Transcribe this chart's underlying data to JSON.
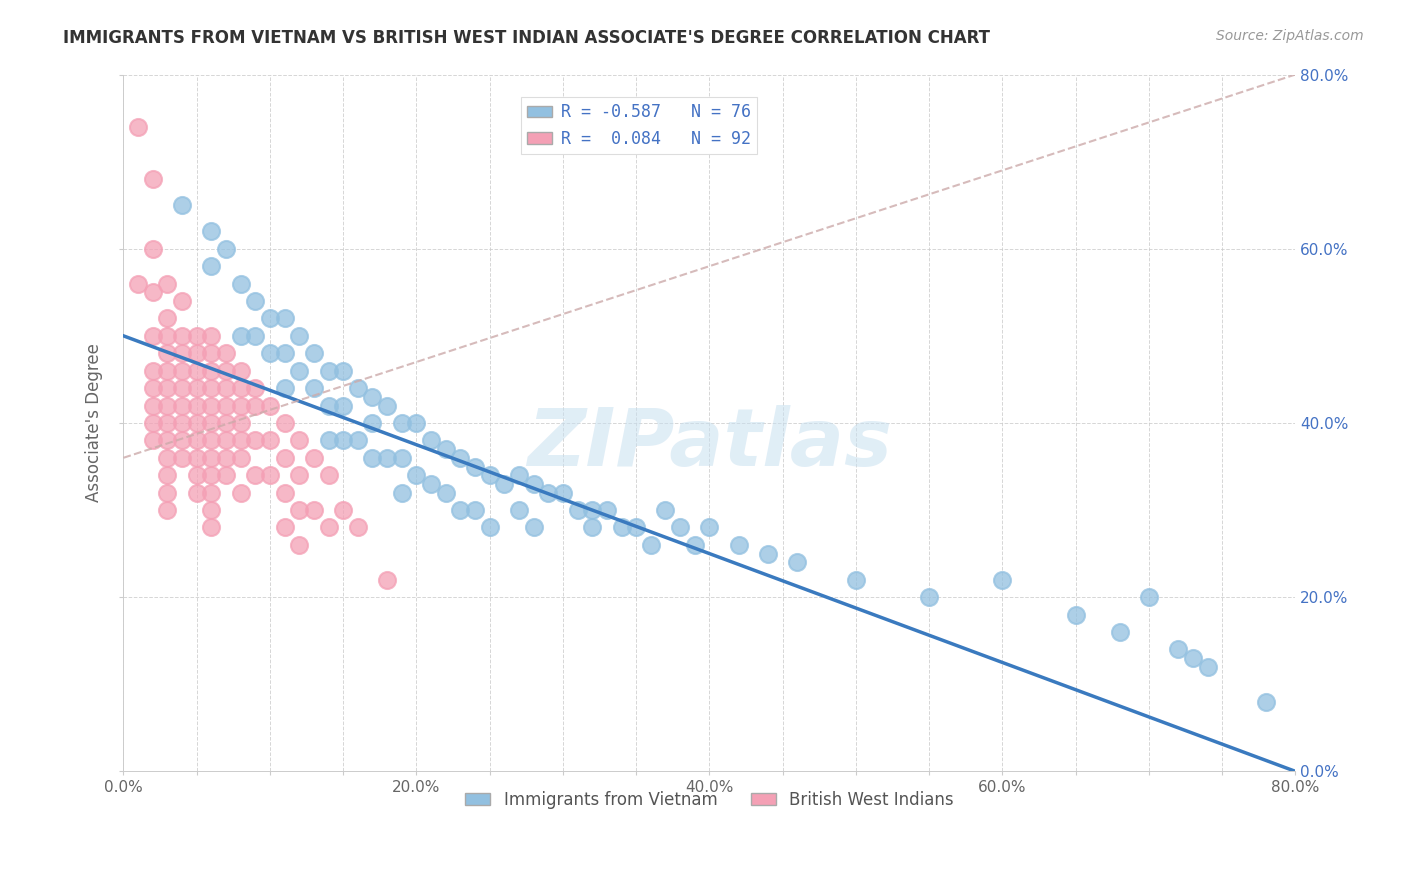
{
  "title": "IMMIGRANTS FROM VIETNAM VS BRITISH WEST INDIAN ASSOCIATE'S DEGREE CORRELATION CHART",
  "source": "Source: ZipAtlas.com",
  "ylabel": "Associate's Degree",
  "legend_blue_r": "R = -0.587",
  "legend_blue_n": "N = 76",
  "legend_pink_r": "R =  0.084",
  "legend_pink_n": "N = 92",
  "legend_bottom_blue": "Immigrants from Vietnam",
  "legend_bottom_pink": "British West Indians",
  "blue_color": "#92c0e0",
  "pink_color": "#f4a0b5",
  "blue_line_color": "#3a7abf",
  "watermark": "ZIPatlas",
  "xlim": [
    0.0,
    0.8
  ],
  "ylim": [
    0.0,
    0.8
  ],
  "blue_trend_x0": 0.0,
  "blue_trend_y0": 0.5,
  "blue_trend_x1": 0.8,
  "blue_trend_y1": 0.0,
  "pink_trend_x0": 0.0,
  "pink_trend_y0": 0.36,
  "pink_trend_x1": 0.8,
  "pink_trend_y1": 0.8,
  "blue_x": [
    0.04,
    0.06,
    0.06,
    0.07,
    0.08,
    0.08,
    0.09,
    0.09,
    0.1,
    0.1,
    0.11,
    0.11,
    0.11,
    0.12,
    0.12,
    0.13,
    0.13,
    0.14,
    0.14,
    0.14,
    0.15,
    0.15,
    0.15,
    0.16,
    0.16,
    0.17,
    0.17,
    0.17,
    0.18,
    0.18,
    0.19,
    0.19,
    0.19,
    0.2,
    0.2,
    0.21,
    0.21,
    0.22,
    0.22,
    0.23,
    0.23,
    0.24,
    0.24,
    0.25,
    0.25,
    0.26,
    0.27,
    0.27,
    0.28,
    0.28,
    0.29,
    0.3,
    0.31,
    0.32,
    0.32,
    0.33,
    0.34,
    0.35,
    0.36,
    0.37,
    0.38,
    0.39,
    0.4,
    0.42,
    0.44,
    0.46,
    0.5,
    0.55,
    0.6,
    0.65,
    0.68,
    0.7,
    0.72,
    0.73,
    0.74,
    0.78
  ],
  "blue_y": [
    0.65,
    0.62,
    0.58,
    0.6,
    0.56,
    0.5,
    0.54,
    0.5,
    0.52,
    0.48,
    0.52,
    0.48,
    0.44,
    0.5,
    0.46,
    0.48,
    0.44,
    0.46,
    0.42,
    0.38,
    0.46,
    0.42,
    0.38,
    0.44,
    0.38,
    0.43,
    0.4,
    0.36,
    0.42,
    0.36,
    0.4,
    0.36,
    0.32,
    0.4,
    0.34,
    0.38,
    0.33,
    0.37,
    0.32,
    0.36,
    0.3,
    0.35,
    0.3,
    0.34,
    0.28,
    0.33,
    0.34,
    0.3,
    0.33,
    0.28,
    0.32,
    0.32,
    0.3,
    0.3,
    0.28,
    0.3,
    0.28,
    0.28,
    0.26,
    0.3,
    0.28,
    0.26,
    0.28,
    0.26,
    0.25,
    0.24,
    0.22,
    0.2,
    0.22,
    0.18,
    0.16,
    0.2,
    0.14,
    0.13,
    0.12,
    0.08
  ],
  "pink_x": [
    0.01,
    0.01,
    0.02,
    0.02,
    0.02,
    0.02,
    0.02,
    0.02,
    0.02,
    0.02,
    0.02,
    0.03,
    0.03,
    0.03,
    0.03,
    0.03,
    0.03,
    0.03,
    0.03,
    0.03,
    0.03,
    0.03,
    0.03,
    0.03,
    0.04,
    0.04,
    0.04,
    0.04,
    0.04,
    0.04,
    0.04,
    0.04,
    0.04,
    0.05,
    0.05,
    0.05,
    0.05,
    0.05,
    0.05,
    0.05,
    0.05,
    0.05,
    0.05,
    0.06,
    0.06,
    0.06,
    0.06,
    0.06,
    0.06,
    0.06,
    0.06,
    0.06,
    0.06,
    0.06,
    0.06,
    0.07,
    0.07,
    0.07,
    0.07,
    0.07,
    0.07,
    0.07,
    0.07,
    0.08,
    0.08,
    0.08,
    0.08,
    0.08,
    0.08,
    0.08,
    0.09,
    0.09,
    0.09,
    0.09,
    0.1,
    0.1,
    0.1,
    0.11,
    0.11,
    0.11,
    0.11,
    0.12,
    0.12,
    0.12,
    0.12,
    0.13,
    0.13,
    0.14,
    0.14,
    0.15,
    0.16,
    0.18
  ],
  "pink_y": [
    0.74,
    0.56,
    0.68,
    0.6,
    0.55,
    0.5,
    0.46,
    0.44,
    0.42,
    0.4,
    0.38,
    0.56,
    0.52,
    0.5,
    0.48,
    0.46,
    0.44,
    0.42,
    0.4,
    0.38,
    0.36,
    0.34,
    0.32,
    0.3,
    0.54,
    0.5,
    0.48,
    0.46,
    0.44,
    0.42,
    0.4,
    0.38,
    0.36,
    0.5,
    0.48,
    0.46,
    0.44,
    0.42,
    0.4,
    0.38,
    0.36,
    0.34,
    0.32,
    0.5,
    0.48,
    0.46,
    0.44,
    0.42,
    0.4,
    0.38,
    0.36,
    0.34,
    0.32,
    0.3,
    0.28,
    0.48,
    0.46,
    0.44,
    0.42,
    0.4,
    0.38,
    0.36,
    0.34,
    0.46,
    0.44,
    0.42,
    0.4,
    0.38,
    0.36,
    0.32,
    0.44,
    0.42,
    0.38,
    0.34,
    0.42,
    0.38,
    0.34,
    0.4,
    0.36,
    0.32,
    0.28,
    0.38,
    0.34,
    0.3,
    0.26,
    0.36,
    0.3,
    0.34,
    0.28,
    0.3,
    0.28,
    0.22
  ]
}
